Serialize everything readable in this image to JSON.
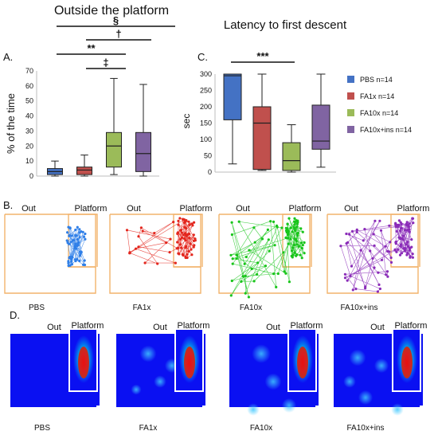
{
  "panels": {
    "a": {
      "label": "A.",
      "title": "Outside the platform"
    },
    "b": {
      "label": "B."
    },
    "c": {
      "label": "C.",
      "title": "Latency to first descent"
    },
    "d": {
      "label": "D."
    }
  },
  "groups": [
    "PBS",
    "FA1x",
    "FA10x",
    "FA10x+ins"
  ],
  "map_labels": {
    "out": "Out",
    "platform": "Platform"
  },
  "legend": [
    {
      "label": "PBS n=14",
      "color": "#4472c4"
    },
    {
      "label": "FA1x n=14",
      "color": "#c0504d"
    },
    {
      "label": "FA10x n=14",
      "color": "#9bbb59"
    },
    {
      "label": "FA10x+ins n=14",
      "color": "#8064a2"
    }
  ],
  "colors": {
    "pbs": "#4472c4",
    "fa1x": "#c0504d",
    "fa10x": "#9bbb59",
    "fa10xins": "#8064a2",
    "trace_pbs": "#2f7fe8",
    "trace_fa1x": "#e3261d",
    "trace_fa10x": "#19c51b",
    "trace_fa10xins": "#8a2bb8",
    "arena_outline": "#f2b36b",
    "heatmap_bg": "#0a10f2"
  },
  "chart_data": [
    {
      "type": "box",
      "panel": "A",
      "title": "Outside the platform",
      "ylabel": "% of the time",
      "ylim": [
        0,
        70
      ],
      "yticks": [
        0,
        10,
        20,
        30,
        40,
        50,
        60,
        70
      ],
      "series": [
        {
          "name": "PBS",
          "min": 0,
          "q1": 1,
          "median": 3,
          "q3": 5,
          "max": 10
        },
        {
          "name": "FA1x",
          "min": 0,
          "q1": 1,
          "median": 4,
          "q3": 6,
          "max": 14
        },
        {
          "name": "FA10x",
          "min": 1,
          "q1": 6,
          "median": 20,
          "q3": 29,
          "max": 65
        },
        {
          "name": "FA10x+ins",
          "min": 0,
          "q1": 3,
          "median": 15,
          "q3": 29,
          "max": 61
        }
      ],
      "significance": [
        {
          "from": "PBS",
          "to": "FA10x+ins",
          "symbol": "§"
        },
        {
          "from": "FA1x",
          "to": "FA10x+ins",
          "symbol": "†"
        },
        {
          "from": "PBS",
          "to": "FA10x",
          "symbol": "**"
        },
        {
          "from": "FA1x",
          "to": "FA10x",
          "symbol": "‡"
        }
      ]
    },
    {
      "type": "box",
      "panel": "C",
      "title": "Latency to first descent",
      "ylabel": "sec",
      "ylim": [
        0,
        300
      ],
      "yticks": [
        0,
        50,
        100,
        150,
        200,
        250,
        300
      ],
      "series": [
        {
          "name": "PBS n=14",
          "min": 25,
          "q1": 160,
          "median": 295,
          "q3": 300,
          "max": 300
        },
        {
          "name": "FA1x n=14",
          "min": 5,
          "q1": 8,
          "median": 150,
          "q3": 200,
          "max": 300
        },
        {
          "name": "FA10x n=14",
          "min": 0,
          "q1": 5,
          "median": 35,
          "q3": 90,
          "max": 145
        },
        {
          "name": "FA10x+ins n=14",
          "min": 15,
          "q1": 70,
          "median": 95,
          "q3": 205,
          "max": 300
        }
      ],
      "significance": [
        {
          "from": "PBS n=14",
          "to": "FA10x n=14",
          "symbol": "***"
        }
      ]
    }
  ]
}
